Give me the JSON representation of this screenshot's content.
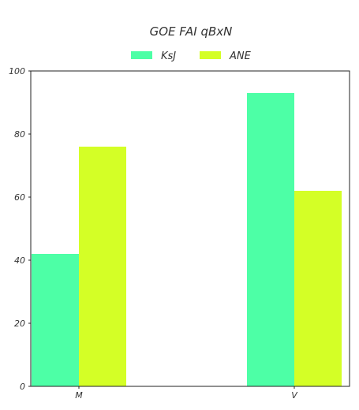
{
  "chart_data": {
    "type": "bar",
    "title": "GOE FAI qBxN",
    "categories": [
      "M",
      "V"
    ],
    "series": [
      {
        "name": "KsJ",
        "values": [
          42,
          93
        ],
        "color": "#4dffa6"
      },
      {
        "name": "ANE",
        "values": [
          76,
          62
        ],
        "color": "#d4ff26"
      }
    ],
    "xlabel": "",
    "ylabel": "",
    "ylim": [
      0,
      100
    ],
    "yticks": [
      0,
      20,
      40,
      60,
      80,
      100
    ],
    "grid": false,
    "legend_position": "top-center"
  }
}
